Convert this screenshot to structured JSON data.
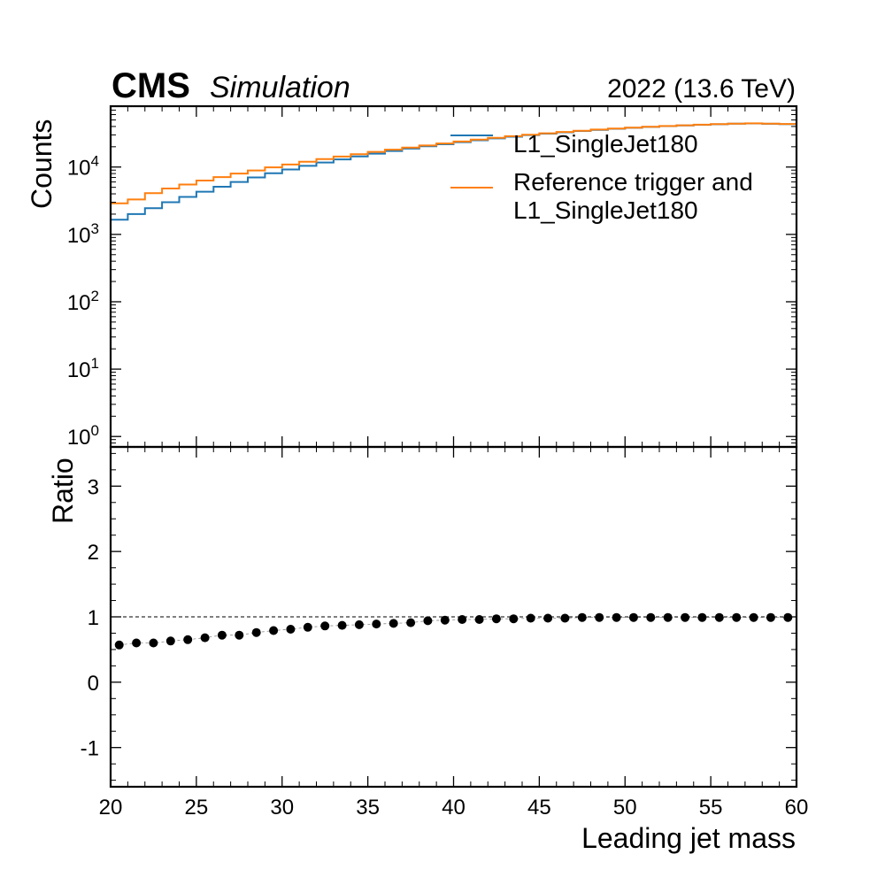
{
  "header": {
    "experiment": "CMS",
    "status": "Simulation",
    "energy_label": "2022 (13.6 TeV)"
  },
  "top_panel": {
    "ylabel": "Counts",
    "yscale": "log",
    "ylim": [
      0.7,
      80000
    ],
    "yticks": [
      {
        "value": 1,
        "base": "10",
        "exp": "0"
      },
      {
        "value": 10,
        "base": "10",
        "exp": "1"
      },
      {
        "value": 100,
        "base": "10",
        "exp": "2"
      },
      {
        "value": 1000,
        "base": "10",
        "exp": "3"
      },
      {
        "value": 10000,
        "base": "10",
        "exp": "4"
      }
    ]
  },
  "bottom_panel": {
    "ylabel": "Ratio",
    "ylim": [
      -1.6,
      3.6
    ],
    "yticks": [
      -1,
      0,
      1,
      2,
      3
    ],
    "ytick_labels": [
      "-1",
      "0",
      "1",
      "2",
      "3"
    ],
    "reference_line": 1
  },
  "xaxis": {
    "label": "Leading jet mass",
    "xlim": [
      20,
      60
    ],
    "ticks": [
      20,
      25,
      30,
      35,
      40,
      45,
      50,
      55,
      60
    ],
    "tick_labels": [
      "20",
      "25",
      "30",
      "35",
      "40",
      "45",
      "50",
      "55",
      "60"
    ]
  },
  "legend": {
    "location": "top-right",
    "entries": [
      {
        "lines": [
          "L1_SingleJet180"
        ],
        "color": "#1f77b4"
      },
      {
        "lines": [
          "Reference trigger and",
          "L1_SingleJet180"
        ],
        "color": "#ff7f0e"
      }
    ]
  },
  "chart_data": {
    "type": "line",
    "xlim": [
      20,
      60
    ],
    "bin_edges": [
      20,
      21,
      22,
      23,
      24,
      25,
      26,
      27,
      28,
      29,
      30,
      31,
      32,
      33,
      34,
      35,
      36,
      37,
      38,
      39,
      40,
      41,
      42,
      43,
      44,
      45,
      46,
      47,
      48,
      49,
      50,
      51,
      52,
      53,
      54,
      55,
      56,
      57,
      58,
      59,
      60
    ],
    "series": [
      {
        "name": "L1_SingleJet180",
        "color": "#1f77b4",
        "style": "step",
        "values": [
          1650,
          2000,
          2450,
          3000,
          3600,
          4300,
          5100,
          6000,
          7000,
          8100,
          9200,
          10400,
          11700,
          13000,
          14400,
          15800,
          17300,
          18800,
          20300,
          21800,
          23400,
          25000,
          26600,
          28200,
          29800,
          31300,
          32800,
          34300,
          35700,
          37000,
          38200,
          39400,
          40500,
          41500,
          42400,
          43200,
          43900,
          44400,
          43800,
          43400
        ]
      },
      {
        "name": "Reference trigger and L1_SingleJet180",
        "color": "#ff7f0e",
        "style": "step",
        "values": [
          2900,
          3300,
          4100,
          4800,
          5500,
          6300,
          7100,
          8000,
          8900,
          9900,
          10900,
          12000,
          13100,
          14300,
          15500,
          16800,
          18100,
          19500,
          20900,
          22400,
          23900,
          25500,
          27100,
          28700,
          30200,
          31700,
          33200,
          34600,
          36000,
          37300,
          38400,
          39500,
          40600,
          41600,
          42500,
          43300,
          44000,
          44500,
          43900,
          43500
        ]
      },
      {
        "name": "Ratio",
        "color": "#000000",
        "style": "markers",
        "panel": "ratio",
        "x": [
          20.5,
          21.5,
          22.5,
          23.5,
          24.5,
          25.5,
          26.5,
          27.5,
          28.5,
          29.5,
          30.5,
          31.5,
          32.5,
          33.5,
          34.5,
          35.5,
          36.5,
          37.5,
          38.5,
          39.5,
          40.5,
          41.5,
          42.5,
          43.5,
          44.5,
          45.5,
          46.5,
          47.5,
          48.5,
          49.5,
          50.5,
          51.5,
          52.5,
          53.5,
          54.5,
          55.5,
          56.5,
          57.5,
          58.5,
          59.5
        ],
        "values": [
          0.57,
          0.6,
          0.6,
          0.63,
          0.65,
          0.68,
          0.72,
          0.72,
          0.76,
          0.79,
          0.81,
          0.84,
          0.86,
          0.87,
          0.88,
          0.89,
          0.9,
          0.91,
          0.94,
          0.95,
          0.96,
          0.96,
          0.97,
          0.97,
          0.98,
          0.98,
          0.98,
          0.99,
          0.99,
          0.99,
          0.99,
          0.99,
          0.99,
          0.99,
          0.99,
          0.99,
          0.99,
          0.99,
          0.99,
          0.99
        ]
      }
    ]
  }
}
